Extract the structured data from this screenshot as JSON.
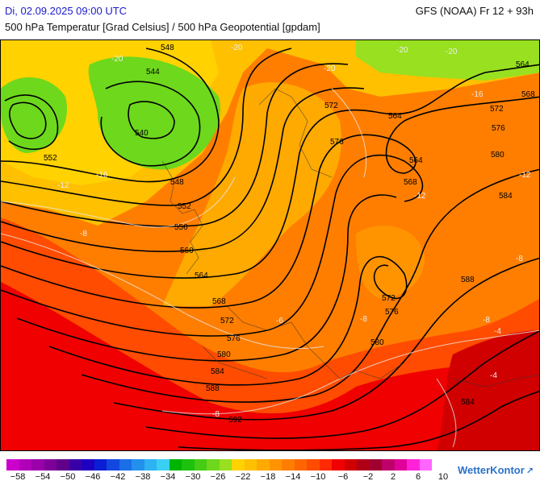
{
  "header": {
    "date": "Di, 02.09.2025 09:00 UTC",
    "model": "GFS (NOAA) Fr 12 + 93h",
    "variable": "500 hPa Temperatur [Grad Celsius] / 500 hPa Geopotential [gpdam]"
  },
  "map": {
    "geopotential_labels": [
      "548",
      "544",
      "540",
      "552",
      "548",
      "552",
      "556",
      "560",
      "564",
      "568",
      "572",
      "576",
      "580",
      "584",
      "588",
      "592",
      "572",
      "576",
      "564",
      "564",
      "568",
      "572",
      "576",
      "580",
      "584",
      "564",
      "568",
      "572",
      "576",
      "580",
      "584",
      "588"
    ],
    "temperature_labels": [
      "-20",
      "-20",
      "-20",
      "-20",
      "-20",
      "-16",
      "-16",
      "-12",
      "-12",
      "-12",
      "-8",
      "-8",
      "-8",
      "-8",
      "-4",
      "-8",
      "-4",
      "-6"
    ]
  },
  "legend": {
    "colors": [
      "#cc00cc",
      "#b000b8",
      "#9a00aa",
      "#7e0098",
      "#60008a",
      "#3a00a8",
      "#1e00c0",
      "#0a1ed6",
      "#1248e0",
      "#1a6ee8",
      "#2490ee",
      "#2eb2f2",
      "#3ad0f4",
      "#00b400",
      "#1cc20c",
      "#46cc14",
      "#6ed81c",
      "#98e020",
      "#ffd200",
      "#ffc000",
      "#ffaa00",
      "#ff9400",
      "#ff7e00",
      "#ff6600",
      "#ff4c00",
      "#ff2a00",
      "#f00000",
      "#d00000",
      "#b00018",
      "#a00030",
      "#c0006a",
      "#e0009a",
      "#ff22d8",
      "#ff66ff"
    ],
    "labels": [
      "−58",
      "−54",
      "−50",
      "−46",
      "−42",
      "−38",
      "−34",
      "−30",
      "−26",
      "−22",
      "−18",
      "−14",
      "−10",
      "−6",
      "−2",
      "2",
      "6",
      "10"
    ]
  },
  "brand": {
    "name": "WetterKontor"
  }
}
